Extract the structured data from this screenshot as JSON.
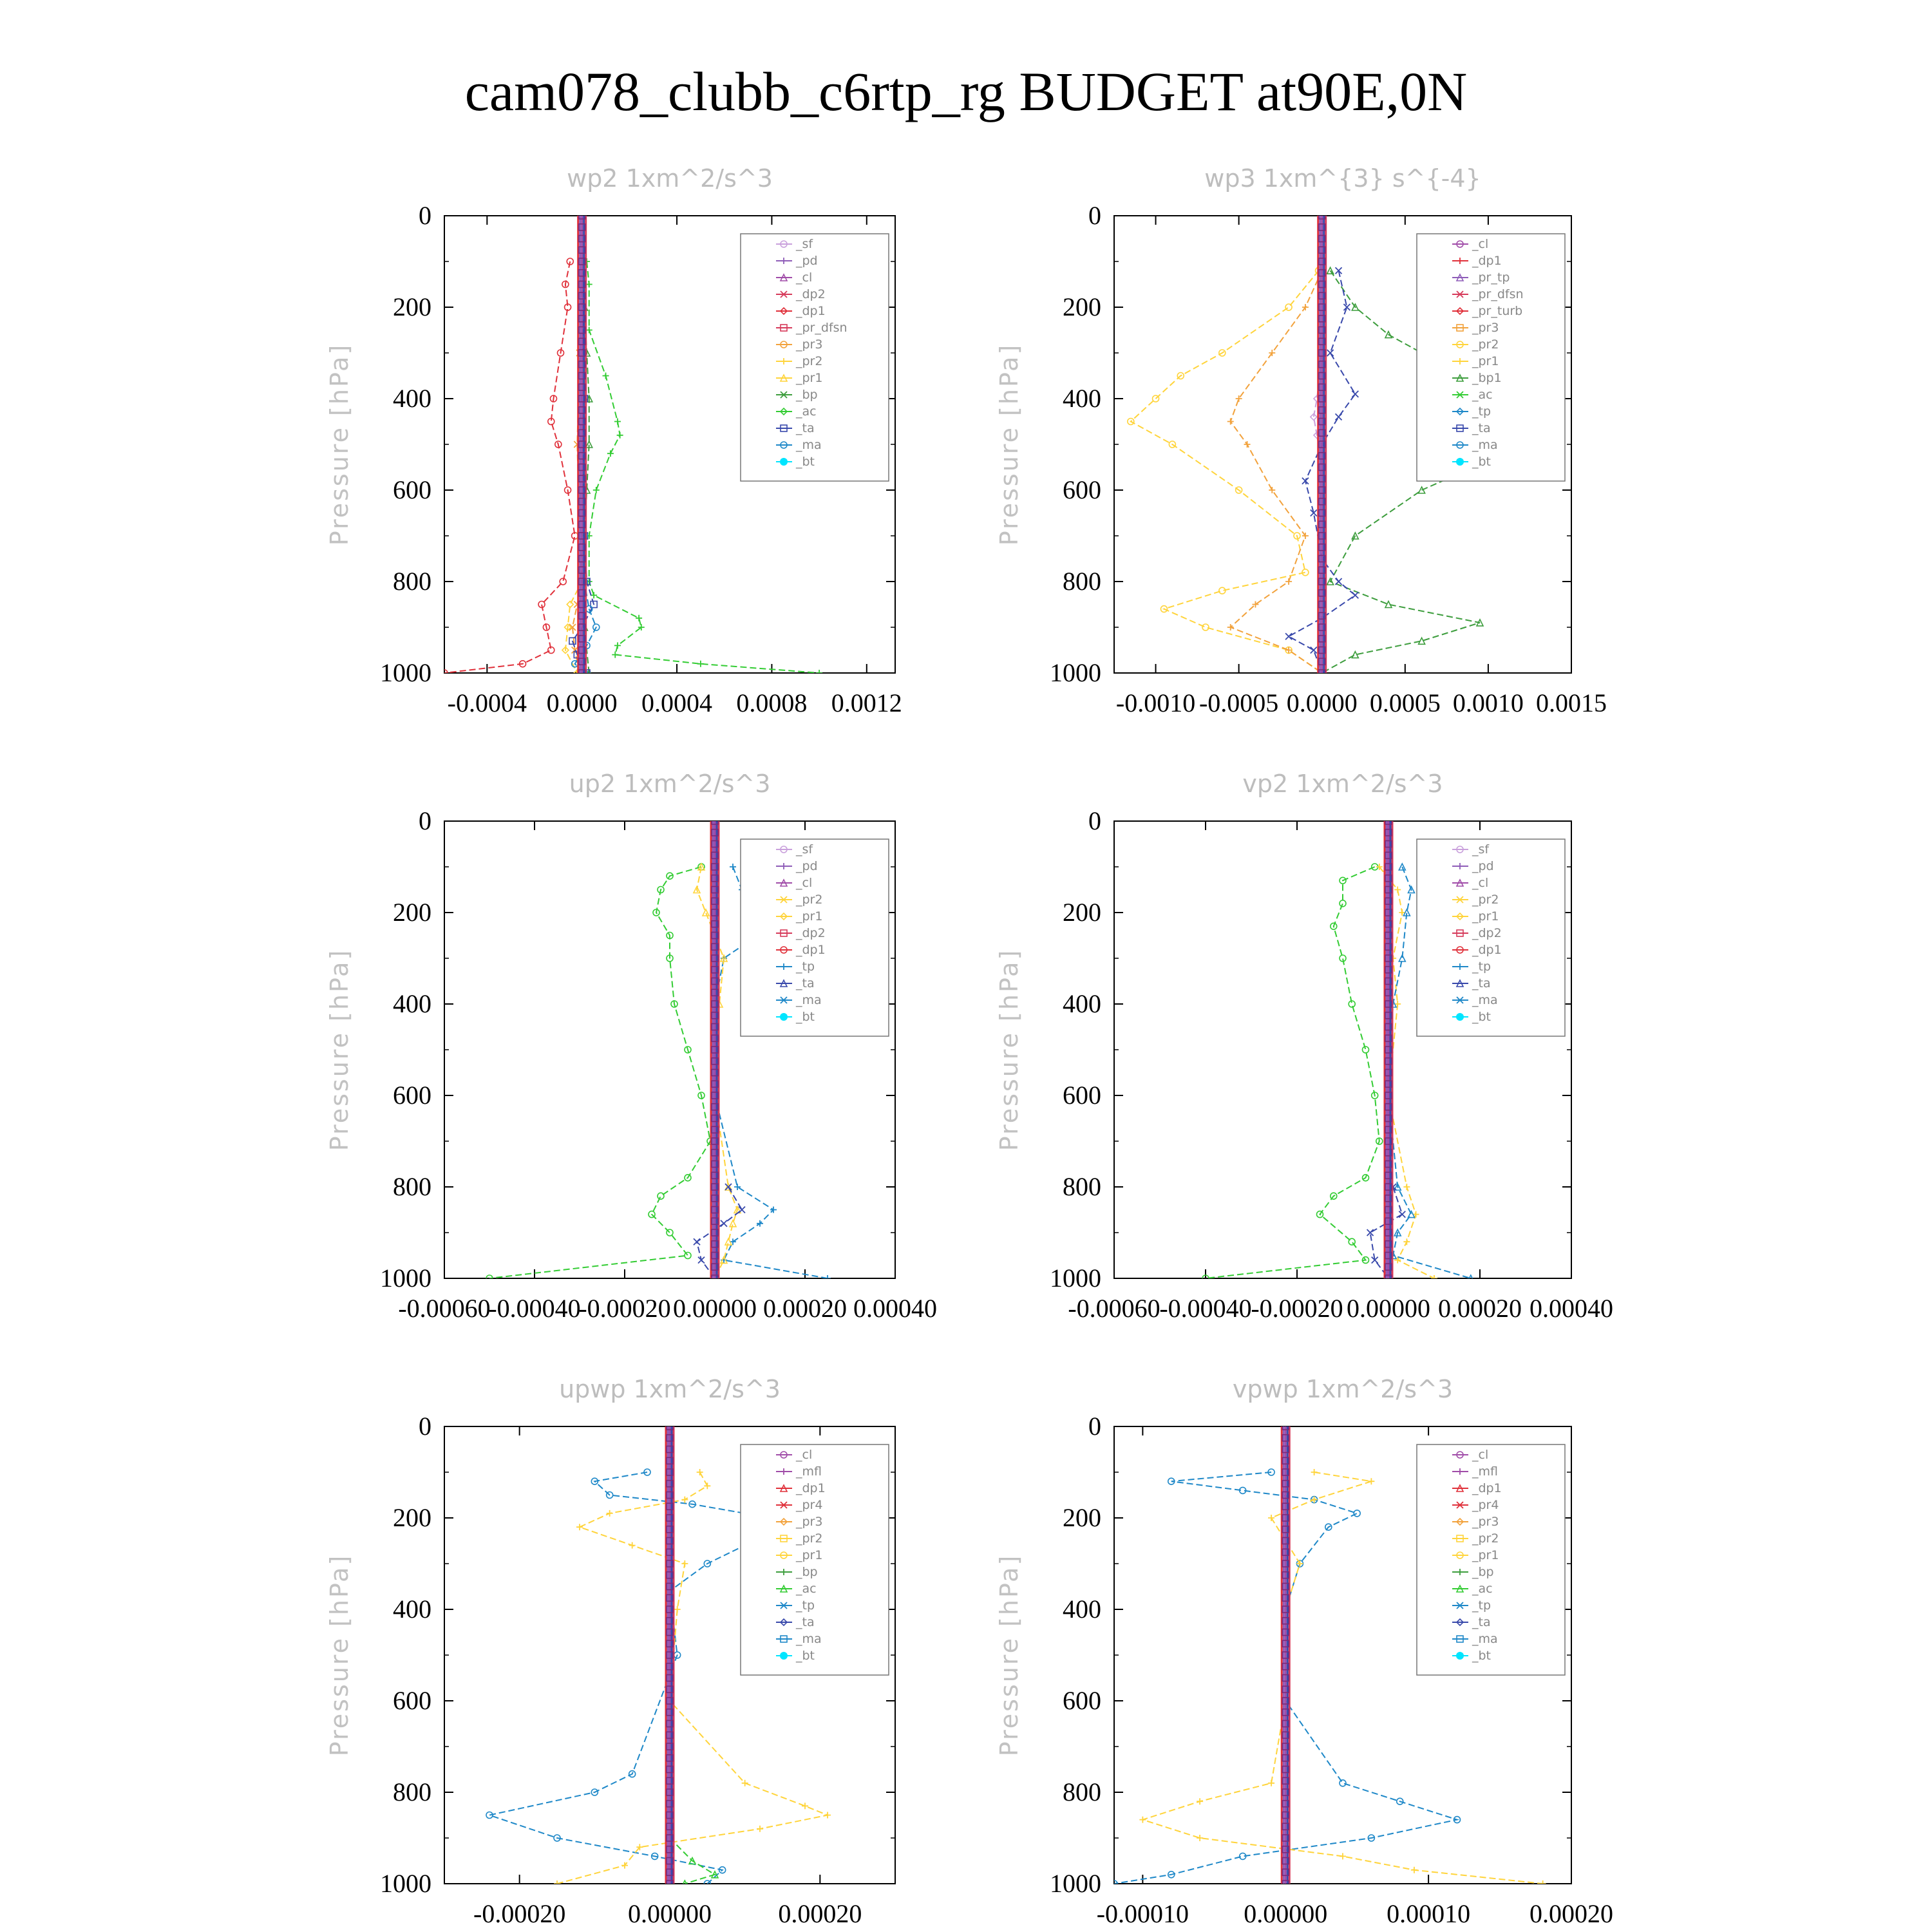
{
  "title": "cam078_clubb_c6rtp_rg  BUDGET at90E,0N",
  "chart_data": [
    {
      "type": "line",
      "title": "wp2   1xm^2/s^3",
      "ylabel": "Pressure [hPa]",
      "xlim": [
        -0.00058,
        0.00132
      ],
      "ylim": [
        1000,
        0
      ],
      "x_ticks": [
        -0.0004,
        0.0,
        0.0004,
        0.0008,
        0.0012
      ],
      "x_tick_labels": [
        "-0.0004",
        "0.0000",
        "0.0004",
        "0.0008",
        "0.0012"
      ],
      "y_ticks": [
        0,
        200,
        400,
        600,
        800,
        1000
      ],
      "y_tick_labels": [
        "0",
        "200",
        "400",
        "600",
        "800",
        "1000"
      ],
      "legend": [
        "_sf",
        "_pd",
        "_cl",
        "_dp2",
        "_dp1",
        "_pr_dfsn",
        "_pr3",
        "_pr2",
        "_pr1",
        "_bp",
        "_ac",
        "_ta",
        "_ma",
        "_bt"
      ],
      "series": [
        {
          "name": "_dp1",
          "color": "#e0303a",
          "y": [
            100,
            150,
            200,
            300,
            400,
            450,
            500,
            600,
            700,
            800,
            850,
            900,
            950,
            980,
            1000
          ],
          "x": [
            -5e-05,
            -7e-05,
            -6e-05,
            -9e-05,
            -0.00012,
            -0.00013,
            -0.0001,
            -6e-05,
            -3e-05,
            -8e-05,
            -0.00017,
            -0.00015,
            -0.00013,
            -0.00025,
            -0.00058
          ]
        },
        {
          "name": "_ac",
          "color": "#33cc33",
          "y": [
            100,
            150,
            250,
            350,
            450,
            480,
            520,
            600,
            700,
            800,
            830,
            880,
            900,
            940,
            960,
            980,
            1000
          ],
          "x": [
            2e-05,
            3e-05,
            3e-05,
            0.0001,
            0.00015,
            0.00016,
            0.00012,
            6e-05,
            3e-05,
            3e-05,
            5e-05,
            0.00024,
            0.00025,
            0.00015,
            0.00014,
            0.0005,
            0.001
          ]
        },
        {
          "name": "_bp",
          "color": "#3d9d3d",
          "y": [
            100,
            200,
            300,
            400,
            500,
            600,
            700,
            800,
            900,
            1000
          ],
          "x": [
            0.0,
            1e-05,
            2e-05,
            3e-05,
            3e-05,
            2e-05,
            1e-05,
            1e-05,
            1e-05,
            3e-05
          ]
        },
        {
          "name": "_pr3",
          "color": "#f2a23c",
          "y": [
            100,
            300,
            500,
            700,
            800,
            850,
            900,
            950,
            1000
          ],
          "x": [
            0.0,
            -1e-05,
            -2e-05,
            -1e-05,
            0.0,
            -2e-05,
            -4e-05,
            -3e-05,
            -1e-05
          ]
        },
        {
          "name": "_pr2",
          "color": "#ffd43b",
          "y": [
            100,
            300,
            500,
            700,
            800,
            850,
            900,
            950,
            1000
          ],
          "x": [
            0.0,
            0.0,
            0.0,
            0.0,
            0.0,
            -5e-05,
            -6e-05,
            -7e-05,
            -2e-05
          ]
        },
        {
          "name": "_ta",
          "color": "#3949ab",
          "y": [
            100,
            400,
            700,
            800,
            850,
            900,
            930,
            960,
            1000
          ],
          "x": [
            0.0,
            1e-05,
            1e-05,
            2e-05,
            5e-05,
            0.0,
            -4e-05,
            -2e-05,
            2e-05
          ]
        },
        {
          "name": "_ma",
          "color": "#1e88c8",
          "y": [
            100,
            400,
            700,
            800,
            860,
            900,
            940,
            980,
            1000
          ],
          "x": [
            0.0,
            0.0,
            1e-05,
            1e-05,
            3e-05,
            6e-05,
            2e-05,
            -3e-05,
            1e-05
          ]
        }
      ]
    },
    {
      "type": "line",
      "title": "wp3   1xm^{3} s^{-4}",
      "ylabel": "Pressure [hPa]",
      "xlim": [
        -0.00125,
        0.0015
      ],
      "ylim": [
        1000,
        0
      ],
      "x_ticks": [
        -0.001,
        -0.0005,
        0.0,
        0.0005,
        0.001,
        0.0015
      ],
      "x_tick_labels": [
        "-0.0010",
        "-0.0005",
        "0.0000",
        "0.0005",
        "0.0010",
        "0.0015"
      ],
      "y_ticks": [
        0,
        200,
        400,
        600,
        800,
        1000
      ],
      "y_tick_labels": [
        "0",
        "200",
        "400",
        "600",
        "800",
        "1000"
      ],
      "legend": [
        "_cl",
        "_dp1",
        "_pr_tp",
        "_pr_dfsn",
        "_pr_turb",
        "_pr3",
        "_pr2",
        "_pr1",
        "_bp1",
        "_ac",
        "_tp",
        "_ta",
        "_ma",
        "_bt"
      ],
      "series": [
        {
          "name": "_pr1",
          "color": "#ffd43b",
          "y": [
            120,
            200,
            300,
            350,
            400,
            450,
            500,
            600,
            700,
            780,
            820,
            860,
            900,
            950,
            1000
          ],
          "x": [
            -2e-05,
            -0.0002,
            -0.0006,
            -0.00085,
            -0.001,
            -0.00115,
            -0.0009,
            -0.0005,
            -0.00015,
            -0.0001,
            -0.0006,
            -0.00095,
            -0.0007,
            -0.0002,
            0.0
          ]
        },
        {
          "name": "_pr2",
          "color": "#f2a23c",
          "y": [
            120,
            200,
            300,
            400,
            450,
            500,
            600,
            700,
            800,
            850,
            900,
            950,
            1000
          ],
          "x": [
            0.0,
            -0.0001,
            -0.0003,
            -0.0005,
            -0.00055,
            -0.00045,
            -0.0003,
            -0.0001,
            -0.0002,
            -0.0004,
            -0.00055,
            -0.0002,
            0.0
          ]
        },
        {
          "name": "_ac",
          "color": "#3d9d3d",
          "y": [
            120,
            200,
            260,
            300,
            400,
            460,
            500,
            560,
            600,
            700,
            800,
            850,
            890,
            930,
            960,
            1000
          ],
          "x": [
            5e-05,
            0.0002,
            0.0004,
            0.0006,
            0.0011,
            0.00135,
            0.00125,
            0.00085,
            0.0006,
            0.0002,
            5e-05,
            0.0004,
            0.00095,
            0.0006,
            0.0002,
            0.0
          ]
        },
        {
          "name": "_tp",
          "color": "#3949ab",
          "y": [
            120,
            200,
            300,
            390,
            440,
            500,
            580,
            650,
            750,
            800,
            830,
            880,
            920,
            950,
            1000
          ],
          "x": [
            0.0001,
            0.00015,
            5e-05,
            0.0002,
            0.0001,
            0.0,
            -0.0001,
            -5e-05,
            0.0,
            0.0001,
            0.0002,
            0.0,
            -0.0002,
            -5e-05,
            0.0
          ]
        },
        {
          "name": "_cl",
          "color": "#c9a0dc",
          "y": [
            300,
            400,
            440,
            480,
            550
          ],
          "x": [
            0.0,
            -3e-05,
            -5e-05,
            -3e-05,
            0.0
          ]
        }
      ]
    },
    {
      "type": "line",
      "title": "up2   1xm^2/s^3",
      "ylabel": "Pressure [hPa]",
      "xlim": [
        -0.0006,
        0.0004
      ],
      "ylim": [
        1000,
        0
      ],
      "x_ticks": [
        -0.0006,
        -0.0004,
        -0.0002,
        0.0,
        0.0002,
        0.0004
      ],
      "x_tick_labels": [
        "-0.00060",
        "-0.00040",
        "-0.00020",
        "0.00000",
        "0.00020",
        "0.00040"
      ],
      "y_ticks": [
        0,
        200,
        400,
        600,
        800,
        1000
      ],
      "y_tick_labels": [
        "0",
        "200",
        "400",
        "600",
        "800",
        "1000"
      ],
      "legend": [
        "_sf",
        "_pd",
        "_cl",
        "_pr2",
        "_pr1",
        "_dp2",
        "_dp1",
        "_tp",
        "_ta",
        "_ma",
        "_bt"
      ],
      "series": [
        {
          "name": "_dp1",
          "color": "#33cc33",
          "y": [
            100,
            120,
            150,
            200,
            250,
            300,
            400,
            500,
            600,
            700,
            780,
            820,
            860,
            900,
            950,
            1000
          ],
          "x": [
            -3e-05,
            -0.0001,
            -0.00012,
            -0.00013,
            -0.0001,
            -0.0001,
            -9e-05,
            -6e-05,
            -3e-05,
            -1e-05,
            -6e-05,
            -0.00012,
            -0.00014,
            -0.0001,
            -6e-05,
            -0.0005
          ]
        },
        {
          "name": "_tp",
          "color": "#1e88c8",
          "y": [
            100,
            150,
            200,
            230,
            260,
            300,
            400,
            600,
            800,
            850,
            880,
            920,
            960,
            1000
          ],
          "x": [
            4e-05,
            6e-05,
            0.00012,
            0.00013,
            8e-05,
            2e-05,
            0.0,
            0.0,
            5e-05,
            0.00013,
            0.0001,
            4e-05,
            2e-05,
            0.00025
          ]
        },
        {
          "name": "_pr1",
          "color": "#ffd43b",
          "y": [
            100,
            150,
            200,
            300,
            400,
            600,
            800,
            850,
            880,
            920,
            960,
            1000
          ],
          "x": [
            -3e-05,
            -4e-05,
            -2e-05,
            2e-05,
            1e-05,
            0.0,
            3e-05,
            5e-05,
            4e-05,
            3e-05,
            2e-05,
            0.0
          ]
        },
        {
          "name": "_ta",
          "color": "#3949ab",
          "y": [
            800,
            850,
            880,
            920,
            960,
            1000
          ],
          "x": [
            3e-05,
            6e-05,
            2e-05,
            -4e-05,
            -3e-05,
            0.0
          ]
        }
      ]
    },
    {
      "type": "line",
      "title": "vp2   1xm^2/s^3",
      "ylabel": "Pressure [hPa]",
      "xlim": [
        -0.0006,
        0.0004
      ],
      "ylim": [
        1000,
        0
      ],
      "x_ticks": [
        -0.0006,
        -0.0004,
        -0.0002,
        0.0,
        0.0002,
        0.0004
      ],
      "x_tick_labels": [
        "-0.00060",
        "-0.00040",
        "-0.00020",
        "0.00000",
        "0.00020",
        "0.00040"
      ],
      "y_ticks": [
        0,
        200,
        400,
        600,
        800,
        1000
      ],
      "y_tick_labels": [
        "0",
        "200",
        "400",
        "600",
        "800",
        "1000"
      ],
      "legend": [
        "_sf",
        "_pd",
        "_cl",
        "_pr2",
        "_pr1",
        "_dp2",
        "_dp1",
        "_tp",
        "_ta",
        "_ma",
        "_bt"
      ],
      "series": [
        {
          "name": "_dp1",
          "color": "#33cc33",
          "y": [
            100,
            130,
            180,
            230,
            300,
            400,
            500,
            600,
            700,
            780,
            820,
            860,
            920,
            960,
            1000
          ],
          "x": [
            -3e-05,
            -0.0001,
            -0.0001,
            -0.00012,
            -0.0001,
            -8e-05,
            -5e-05,
            -3e-05,
            -2e-05,
            -5e-05,
            -0.00012,
            -0.00015,
            -8e-05,
            -5e-05,
            -0.0004
          ]
        },
        {
          "name": "_pr1",
          "color": "#ffd43b",
          "y": [
            100,
            150,
            200,
            300,
            400,
            600,
            800,
            860,
            920,
            960,
            1000
          ],
          "x": [
            -2e-05,
            2e-05,
            3e-05,
            1e-05,
            2e-05,
            0.0,
            4e-05,
            6e-05,
            4e-05,
            2e-05,
            0.0001
          ]
        },
        {
          "name": "_tp",
          "color": "#1e88c8",
          "y": [
            100,
            150,
            200,
            300,
            400,
            600,
            800,
            860,
            900,
            950,
            1000
          ],
          "x": [
            3e-05,
            5e-05,
            4e-05,
            3e-05,
            1e-05,
            0.0,
            2e-05,
            5e-05,
            2e-05,
            1e-05,
            0.00018
          ]
        },
        {
          "name": "_ta",
          "color": "#3949ab",
          "y": [
            800,
            860,
            900,
            960,
            1000
          ],
          "x": [
            1e-05,
            3e-05,
            -4e-05,
            -3e-05,
            0.0
          ]
        }
      ]
    },
    {
      "type": "line",
      "title": "upwp   1xm^2/s^3",
      "ylabel": "Pressure [hPa]",
      "xlim": [
        -0.0003,
        0.0003
      ],
      "ylim": [
        1000,
        0
      ],
      "x_ticks": [
        -0.0002,
        0.0,
        0.0002
      ],
      "x_tick_labels": [
        "-0.00020",
        "0.00000",
        "0.00020"
      ],
      "y_ticks": [
        0,
        200,
        400,
        600,
        800,
        1000
      ],
      "y_tick_labels": [
        "0",
        "200",
        "400",
        "600",
        "800",
        "1000"
      ],
      "legend": [
        "_cl",
        "_mfl",
        "_dp1",
        "_pr4",
        "_pr3",
        "_pr2",
        "_pr1",
        "_bp",
        "_ac",
        "_tp",
        "_ta",
        "_ma",
        "_bt"
      ],
      "series": [
        {
          "name": "_tp",
          "color": "#1e88c8",
          "y": [
            100,
            120,
            150,
            170,
            190,
            220,
            260,
            300,
            360,
            500,
            760,
            800,
            850,
            900,
            940,
            970,
            1000
          ],
          "x": [
            -3e-05,
            -0.0001,
            -8e-05,
            3e-05,
            0.0001,
            0.00015,
            0.0001,
            5e-05,
            0.0,
            1e-05,
            -5e-05,
            -0.0001,
            -0.00024,
            -0.00015,
            -2e-05,
            7e-05,
            5e-05
          ]
        },
        {
          "name": "_pr1",
          "color": "#ffd43b",
          "y": [
            100,
            130,
            160,
            190,
            220,
            260,
            300,
            400,
            600,
            780,
            830,
            850,
            880,
            920,
            960,
            1000
          ],
          "x": [
            4e-05,
            5e-05,
            2e-05,
            -8e-05,
            -0.00012,
            -5e-05,
            2e-05,
            1e-05,
            0.0,
            0.0001,
            0.00018,
            0.00021,
            0.00012,
            -4e-05,
            -6e-05,
            -0.00015
          ]
        },
        {
          "name": "_ac",
          "color": "#33cc33",
          "y": [
            900,
            950,
            980,
            1000
          ],
          "x": [
            0.0,
            3e-05,
            6e-05,
            2e-05
          ]
        }
      ]
    },
    {
      "type": "line",
      "title": "vpwp   1xm^2/s^3",
      "ylabel": "Pressure [hPa]",
      "xlim": [
        -0.00012,
        0.0002
      ],
      "ylim": [
        1000,
        0
      ],
      "x_ticks": [
        -0.0001,
        0.0,
        0.0001,
        0.0002
      ],
      "x_tick_labels": [
        "-0.00010",
        "0.00000",
        "0.00010",
        "0.00020"
      ],
      "y_ticks": [
        0,
        200,
        400,
        600,
        800,
        1000
      ],
      "y_tick_labels": [
        "0",
        "200",
        "400",
        "600",
        "800",
        "1000"
      ],
      "legend": [
        "_cl",
        "_mfl",
        "_dp1",
        "_pr4",
        "_pr3",
        "_pr2",
        "_pr1",
        "_bp",
        "_ac",
        "_tp",
        "_ta",
        "_ma",
        "_bt"
      ],
      "series": [
        {
          "name": "_tp",
          "color": "#1e88c8",
          "y": [
            100,
            120,
            140,
            160,
            190,
            220,
            300,
            400,
            600,
            780,
            820,
            860,
            900,
            940,
            980,
            1000
          ],
          "x": [
            -1e-05,
            -8e-05,
            -3e-05,
            2e-05,
            5e-05,
            3e-05,
            1e-05,
            0.0,
            0.0,
            4e-05,
            8e-05,
            0.00012,
            6e-05,
            -3e-05,
            -8e-05,
            -0.00012
          ]
        },
        {
          "name": "_pr1",
          "color": "#ffd43b",
          "y": [
            100,
            120,
            160,
            200,
            300,
            400,
            600,
            780,
            820,
            860,
            900,
            940,
            970,
            1000
          ],
          "x": [
            2e-05,
            6e-05,
            2e-05,
            -1e-05,
            1e-05,
            0.0,
            0.0,
            -1e-05,
            -6e-05,
            -0.0001,
            -6e-05,
            4e-05,
            9e-05,
            0.00018
          ]
        }
      ]
    }
  ]
}
